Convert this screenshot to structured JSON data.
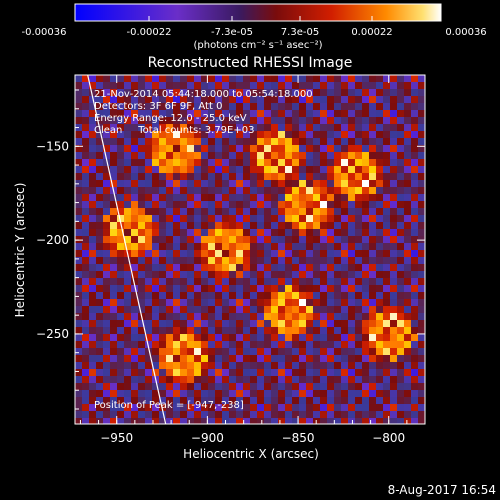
{
  "colorbar": {
    "ticks": [
      "-0.00036",
      "-0.00022",
      "-7.3e-05",
      "7.3e-05",
      "0.00022",
      "0.00036"
    ],
    "units_label": "(photons cm⁻² s⁻¹ asec⁻²)",
    "range": [
      -0.00036,
      0.00036
    ]
  },
  "chart_data": {
    "type": "heatmap",
    "title": "Reconstructed RHESSI Image",
    "xlabel": "Heliocentric X (arcsec)",
    "ylabel": "Heliocentric Y (arcsec)",
    "xlim": [
      -973,
      -780
    ],
    "ylim": [
      -298,
      -112
    ],
    "x_ticks": [
      -950,
      -900,
      -850,
      -800
    ],
    "y_ticks": [
      -150,
      -200,
      -250
    ],
    "x_tick_labels": [
      "−950",
      "−900",
      "−850",
      "−800"
    ],
    "y_tick_labels": [
      "−150",
      "−200",
      "−250"
    ],
    "annotations": [
      "21-Nov-2014 05:44:18.000 to 05:54:18.000",
      "Detectors: 3F 6F 9F, Att 0",
      "Energy Range: 12.0 - 25.0 keV",
      "Clean     Total counts: 3.79E+03"
    ],
    "peak_label": "Position of Peak = [-947,-238]",
    "peak_position": [
      -947,
      -238
    ],
    "limb_line": {
      "from": [
        -966,
        -112
      ],
      "to": [
        -923,
        -298
      ]
    },
    "brightest_regions": [
      {
        "x": -943,
        "y": -195
      },
      {
        "x": -890,
        "y": -205
      },
      {
        "x": -845,
        "y": -182
      },
      {
        "x": -818,
        "y": -165
      },
      {
        "x": -913,
        "y": -262
      },
      {
        "x": -855,
        "y": -238
      },
      {
        "x": -800,
        "y": -250
      },
      {
        "x": -918,
        "y": -152
      },
      {
        "x": -862,
        "y": -155
      }
    ],
    "colormap": [
      "#0000ff",
      "#6a2ec8",
      "#3a3a9a",
      "#7a0c0c",
      "#d11e00",
      "#ff7a00",
      "#ffd200",
      "#ffffff"
    ]
  },
  "footer": {
    "timestamp": "8-Aug-2017 16:54"
  }
}
